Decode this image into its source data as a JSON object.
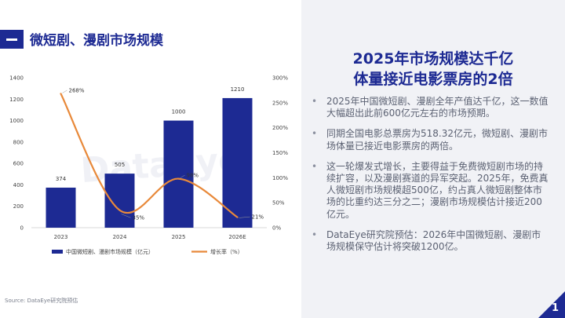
{
  "slide": {
    "title": "微短剧、漫剧市场规模",
    "headline": [
      "2025年市场规模达千亿",
      "体量接近电影票房的2倍"
    ],
    "bullets": [
      "2025年中国微短剧、漫剧全年产值达千亿，这一数值大幅超出此前600亿元左右的市场预期。",
      "同期全国电影总票房为518.32亿元，微短剧、漫剧市场体量已接近电影票房的两倍。",
      "这一轮爆发式增长，主要得益于免费微短剧市场的持续扩容，以及漫剧赛道的异军突起。2025年，免费真人微短剧市场规模超500亿，约占真人微短剧整体市场的比重约达三分之二；漫剧市场规模估计接近200亿元。",
      "DataEye研究院预估：2026年中国微短剧、漫剧市场规模保守估计将突破1200亿。"
    ],
    "bullet_symbol": "•",
    "source": "Source:   DataEye研究院预估",
    "page_number": "1",
    "watermark": "DataEye"
  },
  "chart_data": {
    "type": "bar",
    "categories": [
      "2023",
      "2024",
      "2025",
      "2026E"
    ],
    "series": [
      {
        "name": "中国微短剧、漫剧市场规模（亿元）",
        "type": "bar",
        "axis": "left",
        "values": [
          374,
          505,
          1000,
          1210
        ],
        "labels": [
          "374",
          "505",
          "1000",
          "1210"
        ]
      },
      {
        "name": "增长率（%）",
        "type": "line",
        "axis": "right",
        "values": [
          268,
          35,
          98,
          21
        ],
        "labels": [
          "268%",
          "35%",
          "98%",
          "21%"
        ]
      }
    ],
    "ylim": [
      0,
      1400
    ],
    "yticks": [
      "0",
      "200",
      "400",
      "600",
      "800",
      "1000",
      "1200",
      "1400"
    ],
    "y2lim": [
      0,
      300
    ],
    "y2ticks": [
      "0%",
      "50%",
      "100%",
      "150%",
      "200%",
      "250%",
      "300%"
    ],
    "legend_position": "bottom",
    "colors": {
      "bar": "#1d2a93",
      "line": "#e8893a"
    }
  }
}
